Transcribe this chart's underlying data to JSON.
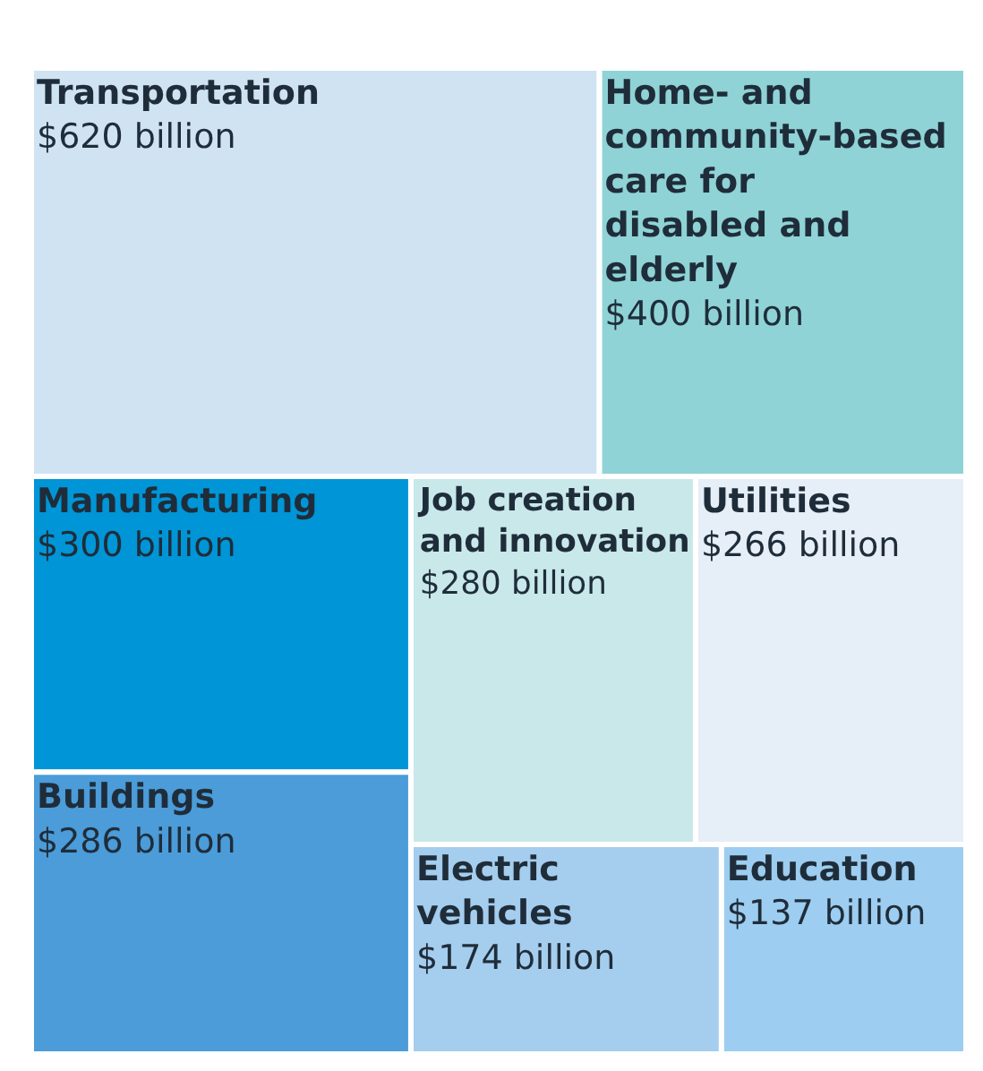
{
  "chart_data": {
    "type": "other",
    "categories": [
      "Transportation",
      "Electric vehicles",
      "Home- and community-based care for disabled and elderly",
      "Manufacturing",
      "Job creation and innovation",
      "Utilities",
      "Buildings",
      "Education"
    ],
    "values": [
      620,
      174,
      400,
      300,
      280,
      266,
      286,
      137
    ],
    "value_labels": [
      "$620 billion",
      "$174 billion",
      "$400 billion",
      "$300 billion",
      "$280 billion",
      "$266 billion",
      "$286 billion",
      "$137 billion"
    ],
    "colors": [
      "#cfe3f3",
      "#a5cdee",
      "#8fd3d6",
      "#0095d6",
      "#c8e8ea",
      "#e6eef8",
      "#4b9cd9",
      "#9dcdf0"
    ]
  }
}
